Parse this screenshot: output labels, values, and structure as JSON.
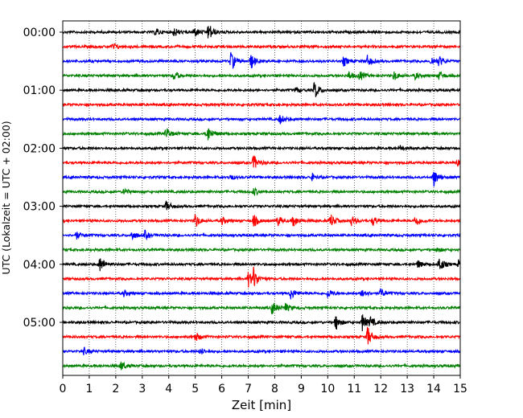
{
  "chart_data": {
    "type": "line",
    "subtype": "helicorder",
    "xlabel": "Zeit  [min]",
    "ylabel": "UTC (Lokalzeit = UTC + 02:00)",
    "xlim": [
      0,
      15
    ],
    "x_ticks": [
      0,
      1,
      2,
      3,
      4,
      5,
      6,
      7,
      8,
      9,
      10,
      11,
      12,
      13,
      14,
      15
    ],
    "x_grid": "dotted vertical lines at each minute",
    "y_ticks": [
      {
        "label": "00:00",
        "row": 0
      },
      {
        "label": "01:00",
        "row": 4
      },
      {
        "label": "02:00",
        "row": 8
      },
      {
        "label": "03:00",
        "row": 12
      },
      {
        "label": "04:00",
        "row": 16
      },
      {
        "label": "05:00",
        "row": 20
      }
    ],
    "row_minutes": 15,
    "trace_colors": [
      "#000000",
      "#ff0000",
      "#0000ff",
      "#008000"
    ],
    "traces": [
      {
        "start": "00:00",
        "events": [
          [
            3.5,
            5
          ],
          [
            4.2,
            6
          ],
          [
            4.95,
            7
          ],
          [
            5.5,
            12
          ]
        ]
      },
      {
        "start": "00:15",
        "events": [
          [
            1.9,
            4
          ]
        ]
      },
      {
        "start": "00:30",
        "events": [
          [
            6.35,
            12
          ],
          [
            7.1,
            10
          ],
          [
            10.6,
            6
          ],
          [
            11.5,
            7
          ],
          [
            13.9,
            6
          ],
          [
            14.2,
            6
          ]
        ]
      },
      {
        "start": "00:45",
        "events": [
          [
            4.2,
            6
          ],
          [
            10.8,
            5
          ],
          [
            11.2,
            6
          ],
          [
            12.5,
            6
          ],
          [
            13.3,
            4
          ],
          [
            14.2,
            6
          ]
        ]
      },
      {
        "start": "01:00",
        "events": [
          [
            8.8,
            4
          ],
          [
            9.5,
            12
          ]
        ]
      },
      {
        "start": "01:15",
        "events": []
      },
      {
        "start": "01:30",
        "events": [
          [
            8.2,
            6
          ]
        ]
      },
      {
        "start": "01:45",
        "events": [
          [
            3.9,
            8
          ],
          [
            5.45,
            12
          ]
        ]
      },
      {
        "start": "02:00",
        "events": [
          [
            12.7,
            4
          ]
        ]
      },
      {
        "start": "02:15",
        "events": [
          [
            7.2,
            10
          ],
          [
            14.9,
            4
          ]
        ]
      },
      {
        "start": "02:30",
        "events": [
          [
            6.3,
            4
          ],
          [
            9.4,
            4
          ],
          [
            14.0,
            11
          ]
        ]
      },
      {
        "start": "02:45",
        "events": [
          [
            2.3,
            5
          ],
          [
            7.2,
            5
          ]
        ]
      },
      {
        "start": "03:00",
        "events": [
          [
            3.9,
            6
          ]
        ]
      },
      {
        "start": "03:15",
        "events": [
          [
            5.0,
            9
          ],
          [
            6.0,
            5
          ],
          [
            7.2,
            8
          ],
          [
            8.1,
            7
          ],
          [
            8.7,
            8
          ],
          [
            10.1,
            9
          ],
          [
            10.9,
            6
          ],
          [
            11.7,
            6
          ],
          [
            13.3,
            8
          ]
        ]
      },
      {
        "start": "03:30",
        "events": [
          [
            0.5,
            5
          ],
          [
            2.6,
            6
          ],
          [
            3.1,
            5
          ]
        ]
      },
      {
        "start": "03:45",
        "events": [
          [
            14.1,
            4
          ]
        ]
      },
      {
        "start": "04:00",
        "events": [
          [
            1.4,
            10
          ],
          [
            13.4,
            5
          ],
          [
            14.2,
            11
          ],
          [
            14.95,
            6
          ]
        ]
      },
      {
        "start": "04:15",
        "events": [
          [
            7.0,
            10
          ],
          [
            7.2,
            12
          ]
        ]
      },
      {
        "start": "04:30",
        "events": [
          [
            2.3,
            4
          ],
          [
            8.6,
            8
          ],
          [
            10.0,
            6
          ],
          [
            11.3,
            6
          ],
          [
            12.0,
            6
          ]
        ]
      },
      {
        "start": "04:45",
        "events": [
          [
            7.9,
            9
          ],
          [
            8.4,
            5
          ]
        ]
      },
      {
        "start": "05:00",
        "events": [
          [
            10.3,
            10
          ],
          [
            11.3,
            11
          ],
          [
            11.6,
            6
          ]
        ]
      },
      {
        "start": "05:15",
        "events": [
          [
            5.0,
            6
          ],
          [
            11.5,
            13
          ]
        ]
      },
      {
        "start": "05:30",
        "events": [
          [
            0.8,
            4
          ],
          [
            5.2,
            4
          ]
        ]
      },
      {
        "start": "05:45",
        "events": [
          [
            2.2,
            6
          ]
        ]
      }
    ]
  }
}
